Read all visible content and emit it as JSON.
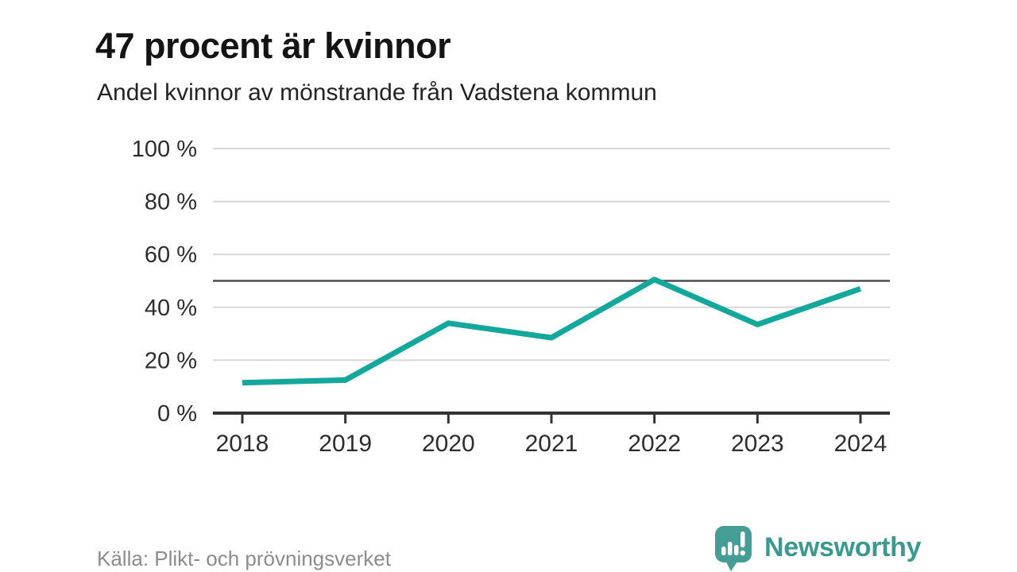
{
  "header": {
    "title": "47 procent är kvinnor",
    "subtitle": "Andel kvinnor av mönstrande från Vadstena kommun"
  },
  "footer": {
    "source": "Källa: Plikt- och prövningsverket",
    "brand": "Newsworthy"
  },
  "chart_data": {
    "type": "line",
    "title": "47 procent är kvinnor",
    "subtitle": "Andel kvinnor av mönstrande från Vadstena kommun",
    "x": [
      2018,
      2019,
      2020,
      2021,
      2022,
      2023,
      2024
    ],
    "series": [
      {
        "name": "Andel kvinnor av mönstrande",
        "values": [
          11.5,
          12.5,
          34,
          28.5,
          50.5,
          33.5,
          47
        ]
      }
    ],
    "ylim": [
      0,
      100
    ],
    "yticks": [
      {
        "value": 0,
        "label": "0 %"
      },
      {
        "value": 20,
        "label": "20 %"
      },
      {
        "value": 40,
        "label": "40 %"
      },
      {
        "value": 60,
        "label": "60 %"
      },
      {
        "value": 80,
        "label": "80 %"
      },
      {
        "value": 100,
        "label": "100 %"
      }
    ],
    "reference_line": 50,
    "grid": true,
    "legend_position": "none",
    "xlabel": "",
    "ylabel": "",
    "colors": {
      "line": "#13a89b",
      "grid": "#d8d8d8",
      "reference": "#4d4d4d",
      "axis": "#333333",
      "tick_text": "#2d2d2d",
      "logo": "#459e95",
      "logo_text": "#3b998f"
    }
  }
}
